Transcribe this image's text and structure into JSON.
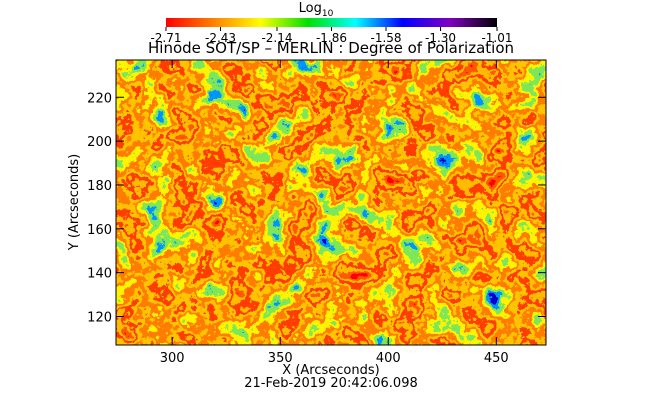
{
  "chart_data": {
    "type": "image",
    "title": "Hinode SOT/SP – MERLIN : Degree of Polarization",
    "colorbar_title": "Log",
    "colorbar_title_sub": "10",
    "colormap": [
      "#ff0000",
      "#ff8000",
      "#ffff00",
      "#00e000",
      "#00ffff",
      "#0000ff",
      "#8000c0",
      "#000000"
    ],
    "clim": [
      -2.71,
      -1.01
    ],
    "cticks": [
      -2.71,
      -2.43,
      -2.14,
      -1.86,
      -1.58,
      -1.3,
      {
        "value": -1.3,
        "label": "-1.30"
      },
      -1.01
    ],
    "xlabel": "X (Arcseconds)",
    "ylabel": "Y (Arcseconds)",
    "xlim": [
      274,
      473
    ],
    "ylim": [
      107,
      237
    ],
    "xticks": [
      300,
      350,
      400,
      450
    ],
    "yticks": [
      120,
      140,
      160,
      180,
      200,
      220
    ],
    "footer": "21-Feb-2019 20:42:06.098"
  }
}
